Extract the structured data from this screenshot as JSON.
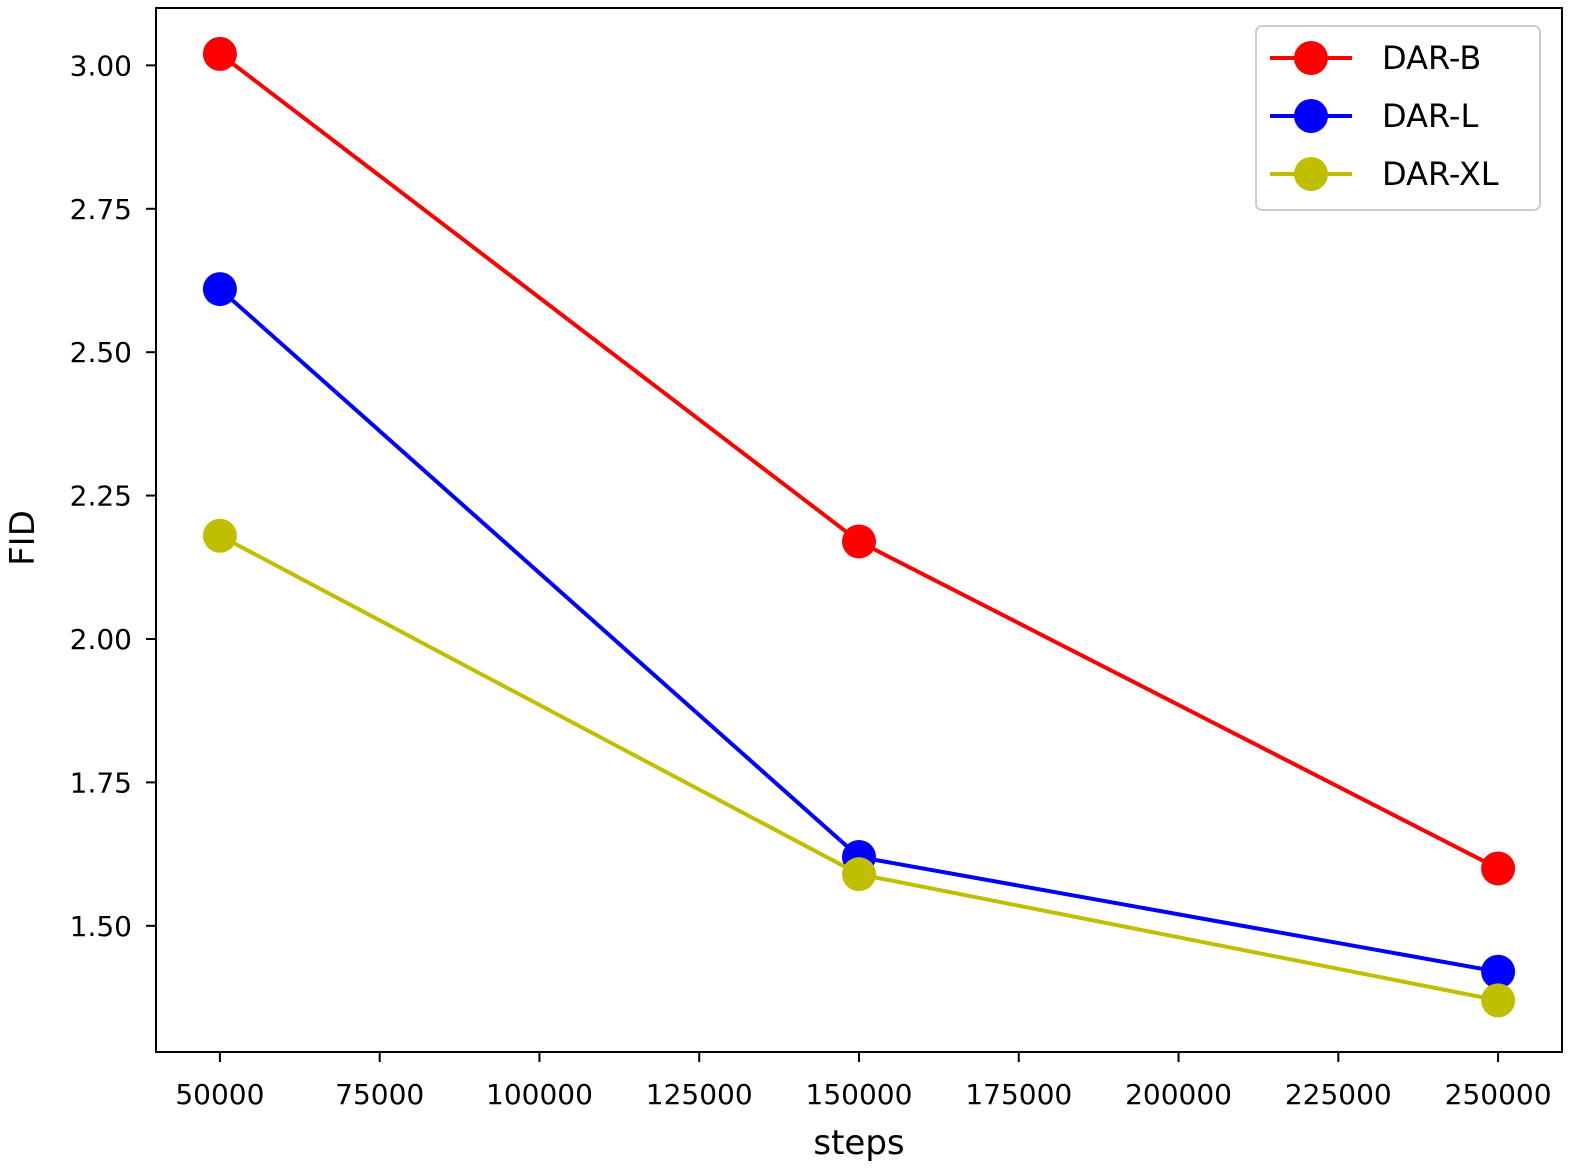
{
  "chart_data": {
    "type": "line",
    "title": "",
    "xlabel": "steps",
    "ylabel": "FID",
    "x": [
      50000,
      150000,
      250000
    ],
    "xlim": [
      40000,
      260000
    ],
    "ylim": [
      1.28,
      3.1
    ],
    "xticks": [
      50000,
      75000,
      100000,
      125000,
      150000,
      175000,
      200000,
      225000,
      250000
    ],
    "yticks": [
      1.5,
      1.75,
      2.0,
      2.25,
      2.5,
      2.75,
      3.0
    ],
    "xtick_labels": [
      "50000",
      "75000",
      "100000",
      "125000",
      "150000",
      "175000",
      "200000",
      "225000",
      "250000"
    ],
    "ytick_labels": [
      "1.50",
      "1.75",
      "2.00",
      "2.25",
      "2.50",
      "2.75",
      "3.00"
    ],
    "grid": false,
    "legend_position": "top-right",
    "series": [
      {
        "name": "DAR-B",
        "color": "#ff0000",
        "values": [
          3.02,
          2.17,
          1.6
        ]
      },
      {
        "name": "DAR-L",
        "color": "#0000ff",
        "values": [
          2.61,
          1.62,
          1.42
        ]
      },
      {
        "name": "DAR-XL",
        "color": "#bfbf00",
        "values": [
          2.18,
          1.59,
          1.37
        ]
      }
    ]
  }
}
